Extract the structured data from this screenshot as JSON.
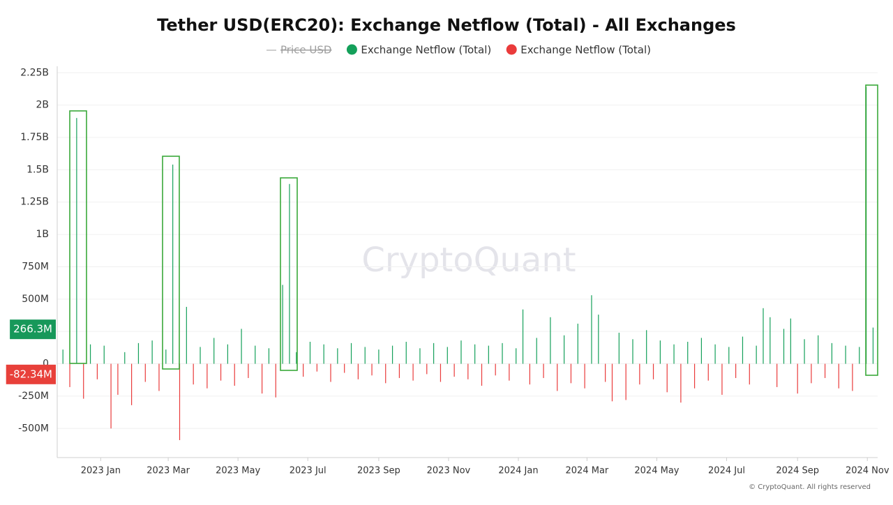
{
  "chart_data": {
    "type": "bar",
    "title": "Tether USD(ERC20): Exchange Netflow (Total) - All Exchanges",
    "legend": [
      {
        "name": "Price USD",
        "color": "#9e9e9e",
        "hidden": true
      },
      {
        "name": "Exchange Netflow (Total)",
        "color": "#14a05a"
      },
      {
        "name": "Exchange Netflow (Total)",
        "color": "#ea3b3b"
      }
    ],
    "watermark": "CryptoQuant",
    "footer": "© CryptoQuant. All rights reserved",
    "positive_color": "#14a05a",
    "negative_color": "#ea3b3b",
    "last_values": [
      {
        "value": 266300000,
        "label": "266.3M",
        "color": "#17985a"
      },
      {
        "value": -82340000,
        "label": "-82.34M",
        "color": "#e8403a"
      }
    ],
    "x": [
      -33,
      -27,
      -21,
      -15,
      -9,
      -3,
      3,
      9,
      15,
      21,
      27,
      33,
      39,
      45,
      51,
      57,
      63,
      69,
      75,
      81,
      87,
      93,
      99,
      105,
      111,
      117,
      123,
      129,
      135,
      141,
      147,
      153,
      159,
      165,
      171,
      177,
      183,
      189,
      195,
      201,
      207,
      213,
      219,
      225,
      231,
      237,
      243,
      249,
      255,
      261,
      267,
      273,
      279,
      285,
      291,
      297,
      303,
      309,
      315,
      321,
      327,
      333,
      339,
      345,
      351,
      357,
      363,
      369,
      375,
      381,
      387,
      393,
      399,
      405,
      411,
      417,
      423,
      429,
      435,
      441,
      447,
      453,
      459,
      465,
      471,
      477,
      483,
      489,
      495,
      501,
      507,
      513,
      519,
      525,
      531,
      537,
      543,
      549,
      555,
      561,
      567,
      573,
      579,
      585,
      591,
      597,
      603,
      609,
      615,
      621,
      627,
      633,
      639,
      645,
      651,
      657,
      663,
      669,
      675
    ],
    "values": [
      110000000.0,
      -180000000.0,
      1900000000.0,
      -270000000.0,
      150000000.0,
      -120000000.0,
      140000000.0,
      -500000000.0,
      -240000000.0,
      90000000.0,
      -320000000.0,
      160000000.0,
      -140000000.0,
      180000000.0,
      -210000000.0,
      110000000.0,
      1540000000.0,
      -590000000.0,
      440000000.0,
      -160000000.0,
      130000000.0,
      -190000000.0,
      200000000.0,
      -130000000.0,
      150000000.0,
      -170000000.0,
      270000000.0,
      -110000000.0,
      140000000.0,
      -230000000.0,
      120000000.0,
      -260000000.0,
      610000000.0,
      1390000000.0,
      90000000.0,
      -100000000.0,
      170000000.0,
      -60000000.0,
      150000000.0,
      -140000000.0,
      120000000.0,
      -70000000.0,
      160000000.0,
      -120000000.0,
      130000000.0,
      -90000000.0,
      110000000.0,
      -150000000.0,
      140000000.0,
      -110000000.0,
      170000000.0,
      -130000000.0,
      120000000.0,
      -80000000.0,
      160000000.0,
      -140000000.0,
      130000000.0,
      -100000000.0,
      180000000.0,
      -120000000.0,
      150000000.0,
      -170000000.0,
      140000000.0,
      -90000000.0,
      160000000.0,
      -130000000.0,
      120000000.0,
      420000000.0,
      -160000000.0,
      200000000.0,
      -110000000.0,
      360000000.0,
      -210000000.0,
      220000000.0,
      -150000000.0,
      310000000.0,
      -190000000.0,
      530000000.0,
      380000000.0,
      -140000000.0,
      -290000000.0,
      240000000.0,
      -280000000.0,
      190000000.0,
      -160000000.0,
      260000000.0,
      -120000000.0,
      180000000.0,
      -220000000.0,
      150000000.0,
      -300000000.0,
      170000000.0,
      -190000000.0,
      200000000.0,
      -130000000.0,
      150000000.0,
      -240000000.0,
      130000000.0,
      -110000000.0,
      210000000.0,
      -160000000.0,
      140000000.0,
      430000000.0,
      360000000.0,
      -180000000.0,
      270000000.0,
      350000000.0,
      -230000000.0,
      190000000.0,
      -150000000.0,
      220000000.0,
      -110000000.0,
      160000000.0,
      -190000000.0,
      140000000.0,
      -210000000.0,
      130000000.0,
      2140000000.0,
      280000000.0
    ],
    "xlim": [
      -38,
      679
    ],
    "xticks": [
      {
        "value": 0,
        "label": "2023 Jan"
      },
      {
        "value": 59,
        "label": "2023 Mar"
      },
      {
        "value": 120,
        "label": "2023 May"
      },
      {
        "value": 181,
        "label": "2023 Jul"
      },
      {
        "value": 243,
        "label": "2023 Sep"
      },
      {
        "value": 304,
        "label": "2023 Nov"
      },
      {
        "value": 365,
        "label": "2024 Jan"
      },
      {
        "value": 425,
        "label": "2024 Mar"
      },
      {
        "value": 486,
        "label": "2024 May"
      },
      {
        "value": 547,
        "label": "2024 Jul"
      },
      {
        "value": 609,
        "label": "2024 Sep"
      },
      {
        "value": 670,
        "label": "2024 Nov"
      }
    ],
    "ylim": [
      -725000000,
      2300000000
    ],
    "yticks": [
      {
        "value": -500000000,
        "label": "-500M"
      },
      {
        "value": -250000000,
        "label": "-250M"
      },
      0,
      {
        "value": 250000000,
        "label": "250M"
      },
      {
        "value": 500000000,
        "label": "500M"
      },
      {
        "value": 750000000,
        "label": "750M"
      },
      {
        "value": 1000000000,
        "label": "1B"
      },
      {
        "value": 1250000000,
        "label": "1.25B"
      },
      {
        "value": 1500000000,
        "label": "1.5B"
      },
      {
        "value": 1750000000,
        "label": "1.75B"
      },
      {
        "value": 2000000000,
        "label": "2B"
      },
      {
        "value": 2250000000,
        "label": "2.25B"
      }
    ],
    "grid": true
  }
}
